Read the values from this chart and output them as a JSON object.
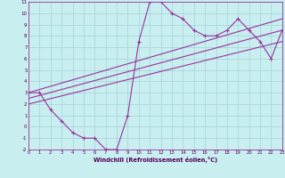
{
  "xlabel": "Windchill (Refroidissement éolien,°C)",
  "background_color": "#c8eef0",
  "grid_color": "#a8d8dc",
  "line_color": "#993399",
  "x_min": 0,
  "x_max": 23,
  "y_min": -2,
  "y_max": 11,
  "series1_x": [
    0,
    1,
    2,
    3,
    4,
    5,
    6,
    7,
    8,
    9,
    10,
    11,
    12,
    13,
    14,
    15,
    16,
    17,
    18,
    19,
    20,
    21,
    22,
    23
  ],
  "series1_y": [
    3,
    3,
    1.5,
    0.5,
    -0.5,
    -1,
    -1,
    -2,
    -2,
    1,
    7.5,
    11,
    11,
    10,
    9.5,
    8.5,
    8,
    8,
    8.5,
    9.5,
    8.5,
    7.5,
    6,
    8.5
  ],
  "series2_x": [
    0,
    23
  ],
  "series2_y": [
    2.5,
    8.5
  ],
  "series3_x": [
    0,
    23
  ],
  "series3_y": [
    3.0,
    9.5
  ],
  "series4_x": [
    0,
    23
  ],
  "series4_y": [
    2.0,
    7.5
  ]
}
